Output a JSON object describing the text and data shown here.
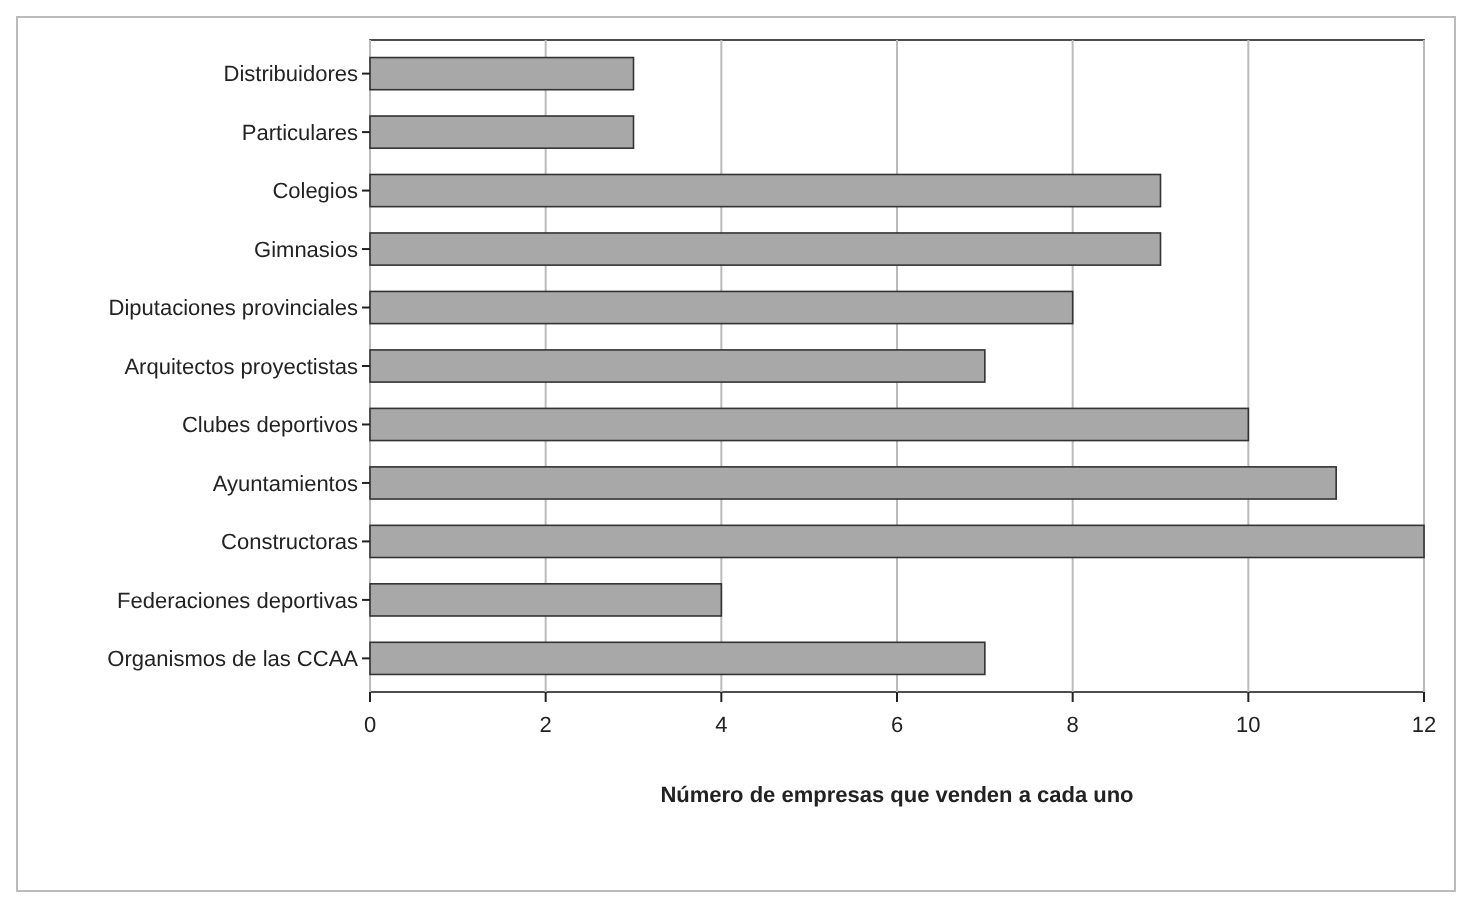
{
  "chart_data": {
    "type": "bar",
    "orientation": "horizontal",
    "xlabel": "Número de empresas que venden a cada uno",
    "categories": [
      "Distribuidores",
      "Particulares",
      "Colegios",
      "Gimnasios",
      "Diputaciones provinciales",
      "Arquitectos proyectistas",
      "Clubes deportivos",
      "Ayuntamientos",
      "Constructoras",
      "Federaciones deportivas",
      "Organismos de las CCAA"
    ],
    "values": [
      3,
      3,
      9,
      9,
      8,
      7,
      10,
      11,
      12,
      4,
      7
    ],
    "color": "#a8a8a8",
    "xlim": [
      0,
      12
    ],
    "xticks": [
      0,
      2,
      4,
      6,
      8,
      10,
      12
    ],
    "grid": "x"
  }
}
